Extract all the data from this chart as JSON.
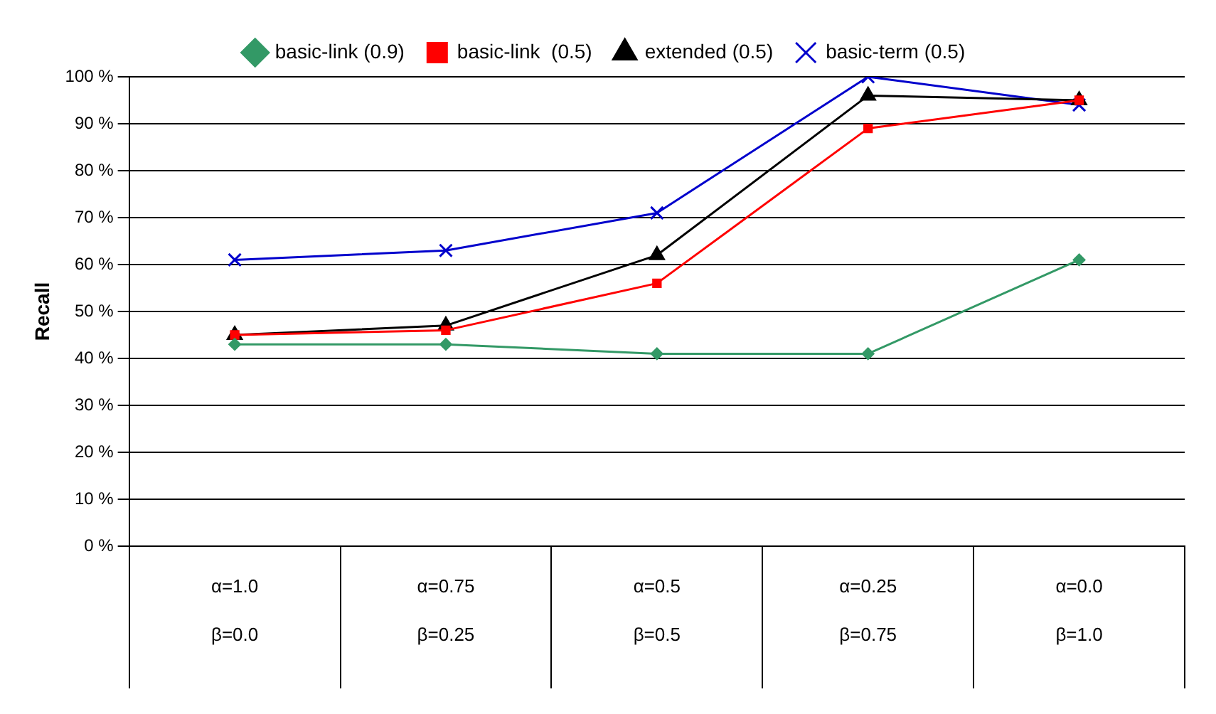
{
  "chart_data": {
    "type": "line",
    "ylabel": "Recall",
    "categories": [
      "α=1.0 β=0.0",
      "α=0.75 β=0.25",
      "α=0.5 β=0.5",
      "α=0.25 β=0.75",
      "α=0.0 β=1.0"
    ],
    "series": [
      {
        "name": "basic-link (0.9)",
        "color": "#339966",
        "marker": "diamond",
        "values": [
          43,
          43,
          41,
          41,
          61
        ]
      },
      {
        "name": "basic-link  (0.5)",
        "color": "#ff0000",
        "marker": "square",
        "values": [
          45,
          46,
          56,
          89,
          95
        ]
      },
      {
        "name": "extended (0.5)",
        "color": "#000000",
        "marker": "triangle",
        "values": [
          45,
          47,
          62,
          96,
          95
        ]
      },
      {
        "name": "basic-term (0.5)",
        "color": "#0000cc",
        "marker": "cross",
        "values": [
          61,
          63,
          71,
          100,
          94
        ]
      }
    ],
    "ylim": [
      0,
      100
    ],
    "yticks": [
      {
        "value": 0,
        "label": "0 %"
      },
      {
        "value": 10,
        "label": "10 %"
      },
      {
        "value": 20,
        "label": "20 %"
      },
      {
        "value": 30,
        "label": "30 %"
      },
      {
        "value": 40,
        "label": "40 %"
      },
      {
        "value": 50,
        "label": "50 %"
      },
      {
        "value": 60,
        "label": "60 %"
      },
      {
        "value": 70,
        "label": "70 %"
      },
      {
        "value": 80,
        "label": "80 %"
      },
      {
        "value": 90,
        "label": "90 %"
      },
      {
        "value": 100,
        "label": "100 %"
      }
    ],
    "grid": "y",
    "legend": "top",
    "line_style": "solid"
  }
}
